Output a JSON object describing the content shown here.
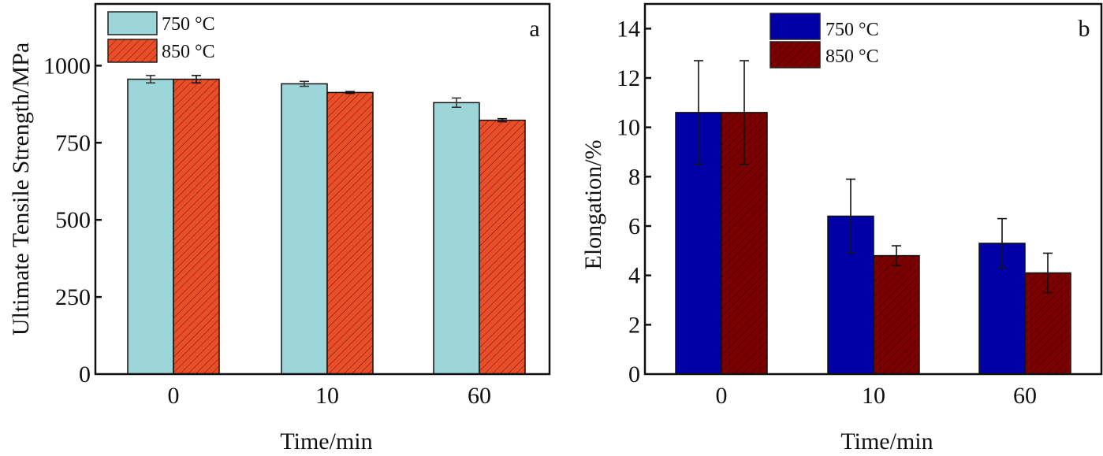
{
  "chart_data": [
    {
      "type": "bar",
      "panel_label": "a",
      "title": "",
      "xlabel": "Time/min",
      "ylabel": "Ultimate Tensile Strength/MPa",
      "categories": [
        "0",
        "10",
        "60"
      ],
      "ylim": [
        0,
        1200
      ],
      "yticks": [
        0,
        250,
        500,
        750,
        1000
      ],
      "ytick_labels": [
        "0",
        "250",
        "500",
        "750",
        "1000"
      ],
      "grid": false,
      "legend_position": "top-left",
      "series": [
        {
          "name": "750 °C",
          "color": "#9dd6d8",
          "hatched": false,
          "values": [
            956,
            941,
            880
          ],
          "errors": [
            12,
            8,
            15
          ]
        },
        {
          "name": "850 °C",
          "color": "#ea4e28",
          "hatched": true,
          "values": [
            956,
            913,
            823
          ],
          "errors": [
            12,
            3,
            5
          ]
        }
      ]
    },
    {
      "type": "bar",
      "panel_label": "b",
      "title": "",
      "xlabel": "Time/min",
      "ylabel": "Elongation/%",
      "categories": [
        "0",
        "10",
        "60"
      ],
      "ylim": [
        0,
        15
      ],
      "yticks": [
        0,
        2,
        4,
        6,
        8,
        10,
        12,
        14
      ],
      "ytick_labels": [
        "0",
        "2",
        "4",
        "6",
        "8",
        "10",
        "12",
        "14"
      ],
      "grid": false,
      "legend_position": "top-center",
      "series": [
        {
          "name": "750 °C",
          "color": "#0000a6",
          "hatched": false,
          "values": [
            10.6,
            6.4,
            5.3
          ],
          "errors": [
            2.1,
            1.5,
            1.0
          ]
        },
        {
          "name": "850 °C",
          "color": "#7d0000",
          "hatched": true,
          "values": [
            10.6,
            4.8,
            4.1
          ],
          "errors": [
            2.1,
            0.4,
            0.8
          ]
        }
      ]
    }
  ]
}
